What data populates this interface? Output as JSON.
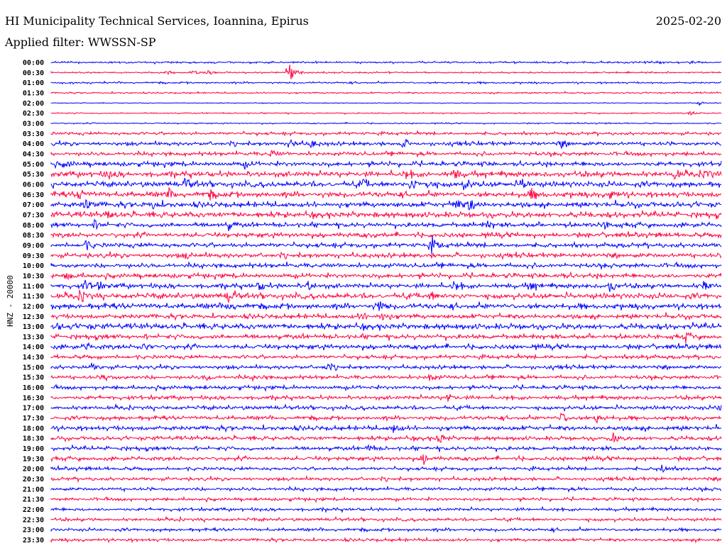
{
  "header": {
    "title": "HI Municipality Technical Services, Ioannina, Epirus",
    "filter": "Applied filter: WWSSN-SP",
    "date": "2025-02-20"
  },
  "chart_data": {
    "type": "line",
    "title": "HI Municipality Technical Services, Ioannina, Epirus",
    "ylabel": "HNZ - 20000",
    "minutes_per_row": 30,
    "colors": {
      "even": "#0000ff",
      "odd": "#ff0040"
    },
    "row_labels": [
      "00:00",
      "00:30",
      "01:00",
      "01:30",
      "02:00",
      "02:30",
      "03:00",
      "03:30",
      "04:00",
      "04:30",
      "05:00",
      "05:30",
      "06:00",
      "06:30",
      "07:00",
      "07:30",
      "08:00",
      "08:30",
      "09:00",
      "09:30",
      "10:00",
      "10:30",
      "11:00",
      "11:30",
      "12:00",
      "12:30",
      "13:00",
      "13:30",
      "14:00",
      "14:30",
      "15:00",
      "15:30",
      "16:00",
      "16:30",
      "17:00",
      "17:30",
      "18:00",
      "18:30",
      "19:00",
      "19:30",
      "20:00",
      "20:30",
      "21:00",
      "21:30",
      "22:00",
      "22:30",
      "23:00",
      "23:30"
    ],
    "noise_levels": [
      0.12,
      0.1,
      0.12,
      0.1,
      0.05,
      0.08,
      0.08,
      0.2,
      0.25,
      0.25,
      0.3,
      0.35,
      0.35,
      0.35,
      0.35,
      0.35,
      0.3,
      0.3,
      0.3,
      0.3,
      0.3,
      0.3,
      0.3,
      0.35,
      0.35,
      0.3,
      0.35,
      0.3,
      0.3,
      0.25,
      0.25,
      0.25,
      0.25,
      0.25,
      0.25,
      0.25,
      0.3,
      0.25,
      0.25,
      0.25,
      0.22,
      0.22,
      0.22,
      0.2,
      0.2,
      0.2,
      0.2,
      0.2
    ],
    "events": [
      [
        1,
        10.6,
        3.0
      ],
      [
        1,
        5.1,
        0.5
      ],
      [
        1,
        6.3,
        0.4
      ],
      [
        1,
        7.0,
        0.4
      ],
      [
        4,
        29.0,
        0.5
      ],
      [
        5,
        28.6,
        0.5
      ],
      [
        8,
        10.7,
        0.8
      ],
      [
        8,
        11.6,
        0.9
      ],
      [
        8,
        15.7,
        1.0
      ],
      [
        8,
        22.8,
        0.8
      ],
      [
        9,
        9.8,
        0.8
      ],
      [
        10,
        0.6,
        0.7
      ],
      [
        10,
        8.6,
        0.7
      ],
      [
        11,
        2.5,
        1.0
      ],
      [
        11,
        15.8,
        1.0
      ],
      [
        11,
        18.0,
        1.0
      ],
      [
        11,
        27.9,
        0.8
      ],
      [
        11,
        29.3,
        0.9
      ],
      [
        12,
        6.0,
        1.1
      ],
      [
        12,
        13.9,
        1.1
      ],
      [
        12,
        16.1,
        1.4
      ],
      [
        12,
        16.8,
        1.0
      ],
      [
        12,
        18.5,
        1.1
      ],
      [
        12,
        21.1,
        1.0
      ],
      [
        13,
        1.2,
        1.0
      ],
      [
        13,
        5.2,
        1.0
      ],
      [
        13,
        7.1,
        0.8
      ],
      [
        13,
        21.5,
        1.1
      ],
      [
        13,
        25.0,
        0.8
      ],
      [
        14,
        1.5,
        1.2
      ],
      [
        14,
        4.5,
        0.8
      ],
      [
        14,
        18.0,
        1.4
      ],
      [
        14,
        18.7,
        1.5
      ],
      [
        15,
        2.5,
        0.8
      ],
      [
        16,
        1.9,
        0.8
      ],
      [
        16,
        7.9,
        0.9
      ],
      [
        16,
        19.5,
        0.8
      ],
      [
        16,
        24.7,
        0.9
      ],
      [
        18,
        1.5,
        1.0
      ],
      [
        18,
        17.0,
        1.6
      ],
      [
        19,
        6.0,
        0.6
      ],
      [
        21,
        0.7,
        0.9
      ],
      [
        21,
        22.7,
        0.8
      ],
      [
        22,
        1.5,
        1.0
      ],
      [
        22,
        2.0,
        1.0
      ],
      [
        22,
        9.3,
        0.9
      ],
      [
        22,
        11.5,
        0.9
      ],
      [
        22,
        18.0,
        1.1
      ],
      [
        22,
        21.4,
        1.0
      ],
      [
        22,
        25.0,
        1.0
      ],
      [
        22,
        29.2,
        1.0
      ],
      [
        23,
        1.3,
        1.3
      ],
      [
        23,
        7.9,
        1.3
      ],
      [
        23,
        16.9,
        0.9
      ],
      [
        24,
        7.9,
        0.8
      ],
      [
        24,
        14.6,
        1.3
      ],
      [
        25,
        13.8,
        0.8
      ],
      [
        25,
        14.8,
        0.9
      ],
      [
        26,
        0.3,
        0.6
      ],
      [
        26,
        1.4,
        0.6
      ],
      [
        27,
        28.4,
        0.7
      ],
      [
        28,
        1.5,
        0.7
      ],
      [
        28,
        4.1,
        0.8
      ],
      [
        29,
        26.4,
        0.6
      ],
      [
        30,
        1.8,
        0.6
      ],
      [
        30,
        12.3,
        0.7
      ],
      [
        31,
        2.4,
        0.7
      ],
      [
        31,
        6.9,
        0.8
      ],
      [
        31,
        9.1,
        0.7
      ],
      [
        31,
        16.9,
        0.8
      ],
      [
        33,
        17.7,
        1.0
      ],
      [
        34,
        29.9,
        0.7
      ],
      [
        35,
        22.8,
        1.3
      ],
      [
        35,
        24.4,
        1.0
      ],
      [
        36,
        15.3,
        1.0
      ],
      [
        37,
        17.3,
        1.2
      ],
      [
        37,
        25.1,
        1.0
      ],
      [
        38,
        14.2,
        0.7
      ],
      [
        39,
        16.6,
        1.2
      ],
      [
        40,
        27.3,
        1.0
      ]
    ]
  }
}
